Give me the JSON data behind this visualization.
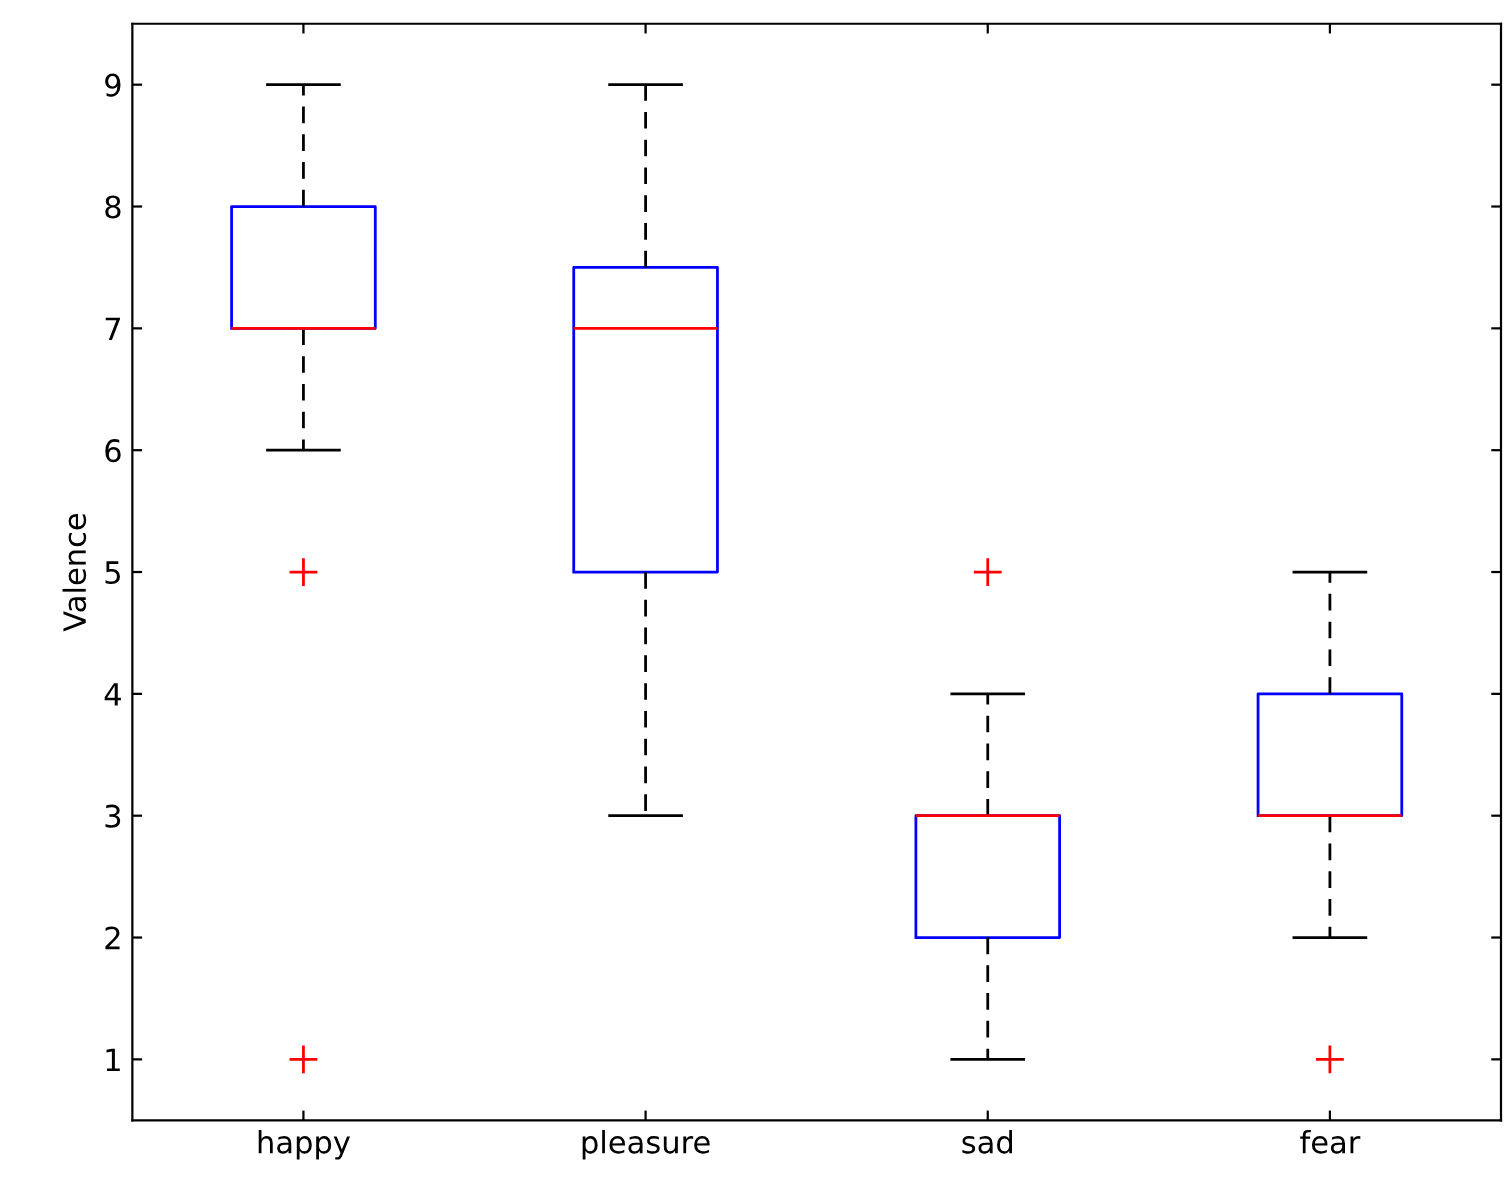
{
  "chart_data": {
    "type": "box",
    "ylabel": "Valence",
    "categories": [
      "happy",
      "pleasure",
      "sad",
      "fear"
    ],
    "boxes": [
      {
        "low": 6,
        "q1": 7,
        "median": 7,
        "q3": 8,
        "high": 9,
        "outliers": [
          5,
          1
        ]
      },
      {
        "low": 3,
        "q1": 5,
        "median": 7,
        "q3": 7.5,
        "high": 9
      },
      {
        "low": 1,
        "q1": 2,
        "median": 3,
        "q3": 3,
        "high": 4,
        "outliers": [
          5
        ]
      },
      {
        "low": 2,
        "q1": 3,
        "median": 3,
        "q3": 4,
        "high": 5,
        "outliers": [
          1
        ]
      }
    ],
    "color": "#0000ff",
    "marker": "cross",
    "line_style": "dashed",
    "grid": false,
    "ylim": [
      0.5,
      9.5
    ],
    "yticks": [
      1,
      2,
      3,
      4,
      5,
      6,
      7,
      8,
      9
    ]
  }
}
